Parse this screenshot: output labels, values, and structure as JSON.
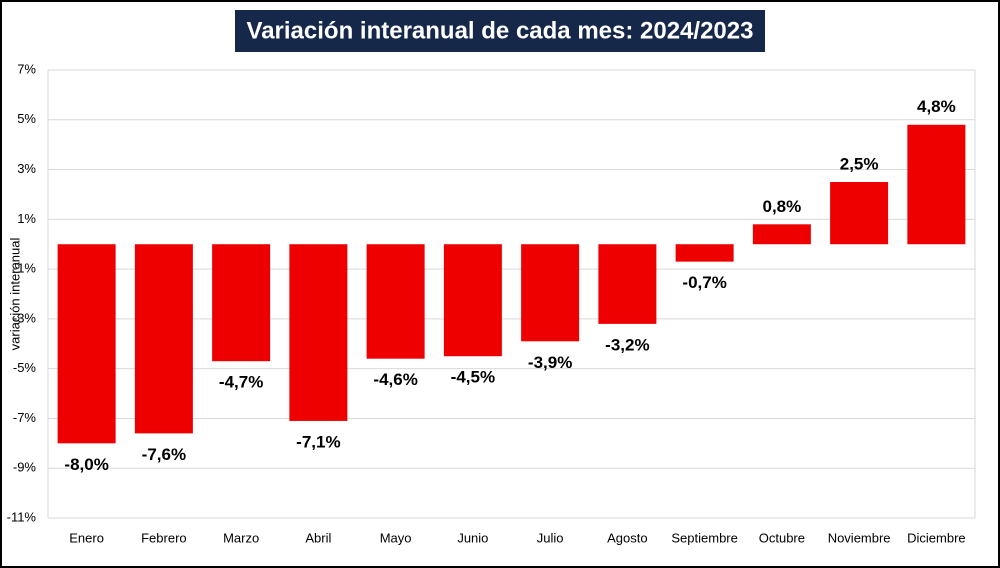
{
  "chart_data": {
    "type": "bar",
    "title": "Variación interanual de cada mes: 2024/2023",
    "y_label": "variación interanual",
    "categories": [
      "Enero",
      "Febrero",
      "Marzo",
      "Abril",
      "Mayo",
      "Junio",
      "Julio",
      "Agosto",
      "Septiembre",
      "Octubre",
      "Noviembre",
      "Diciembre"
    ],
    "values": [
      -8.0,
      -7.6,
      -4.7,
      -7.1,
      -4.6,
      -4.5,
      -3.9,
      -3.2,
      -0.7,
      0.8,
      2.5,
      4.8
    ],
    "value_labels": [
      "-8,0%",
      "-7,6%",
      "-4,7%",
      "-7,1%",
      "-4,6%",
      "-4,5%",
      "-3,9%",
      "-3,2%",
      "-0,7%",
      "0,8%",
      "2,5%",
      "4,8%"
    ],
    "color": "#ee0000",
    "ylim": [
      -11,
      7
    ],
    "yticks": [
      {
        "value": -11,
        "label": "-11%"
      },
      {
        "value": -9,
        "label": "-9%"
      },
      {
        "value": -7,
        "label": "-7%"
      },
      {
        "value": -5,
        "label": "-5%"
      },
      {
        "value": -3,
        "label": "-3%"
      },
      {
        "value": -1,
        "label": "-1%"
      },
      {
        "value": 1,
        "label": "1%"
      },
      {
        "value": 3,
        "label": "3%"
      },
      {
        "value": 5,
        "label": "5%"
      },
      {
        "value": 7,
        "label": "7%"
      }
    ],
    "grid": true
  }
}
